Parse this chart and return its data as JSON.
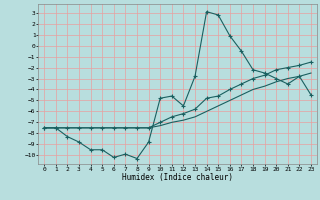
{
  "xlabel": "Humidex (Indice chaleur)",
  "xlim": [
    -0.5,
    23.5
  ],
  "ylim": [
    -10.8,
    3.8
  ],
  "xticks": [
    0,
    1,
    2,
    3,
    4,
    5,
    6,
    7,
    8,
    9,
    10,
    11,
    12,
    13,
    14,
    15,
    16,
    17,
    18,
    19,
    20,
    21,
    22,
    23
  ],
  "yticks": [
    3,
    2,
    1,
    0,
    -1,
    -2,
    -3,
    -4,
    -5,
    -6,
    -7,
    -8,
    -9,
    -10
  ],
  "bg_color": "#b8dede",
  "grid_color": "#e8a0a0",
  "line_color": "#1a6060",
  "line1_x": [
    0,
    1,
    2,
    3,
    4,
    5,
    6,
    7,
    8,
    9,
    10,
    11,
    12,
    13,
    14,
    15,
    16,
    17,
    18,
    19,
    20,
    21,
    22,
    23
  ],
  "line1_y": [
    -7.5,
    -7.5,
    -8.3,
    -8.8,
    -9.5,
    -9.5,
    -10.2,
    -9.9,
    -10.3,
    -8.8,
    -4.8,
    -4.6,
    -5.5,
    -2.8,
    3.1,
    2.8,
    0.9,
    -0.5,
    -2.2,
    -2.5,
    -3.0,
    -3.5,
    -2.8,
    -4.5
  ],
  "line2_x": [
    0,
    1,
    2,
    3,
    4,
    5,
    6,
    7,
    8,
    9,
    10,
    11,
    12,
    13,
    14,
    15,
    16,
    17,
    18,
    19,
    20,
    21,
    22,
    23
  ],
  "line2_y": [
    -7.5,
    -7.5,
    -7.5,
    -7.5,
    -7.5,
    -7.5,
    -7.5,
    -7.5,
    -7.5,
    -7.5,
    -7.0,
    -6.5,
    -6.2,
    -5.8,
    -4.8,
    -4.6,
    -4.0,
    -3.5,
    -3.0,
    -2.7,
    -2.2,
    -2.0,
    -1.8,
    -1.5
  ],
  "line3_x": [
    0,
    1,
    2,
    3,
    4,
    5,
    6,
    7,
    8,
    9,
    10,
    11,
    12,
    13,
    14,
    15,
    16,
    17,
    18,
    19,
    20,
    21,
    22,
    23
  ],
  "line3_y": [
    -7.5,
    -7.5,
    -7.5,
    -7.5,
    -7.5,
    -7.5,
    -7.5,
    -7.5,
    -7.5,
    -7.5,
    -7.3,
    -7.0,
    -6.8,
    -6.5,
    -6.0,
    -5.5,
    -5.0,
    -4.5,
    -4.0,
    -3.7,
    -3.3,
    -3.0,
    -2.8,
    -2.5
  ]
}
